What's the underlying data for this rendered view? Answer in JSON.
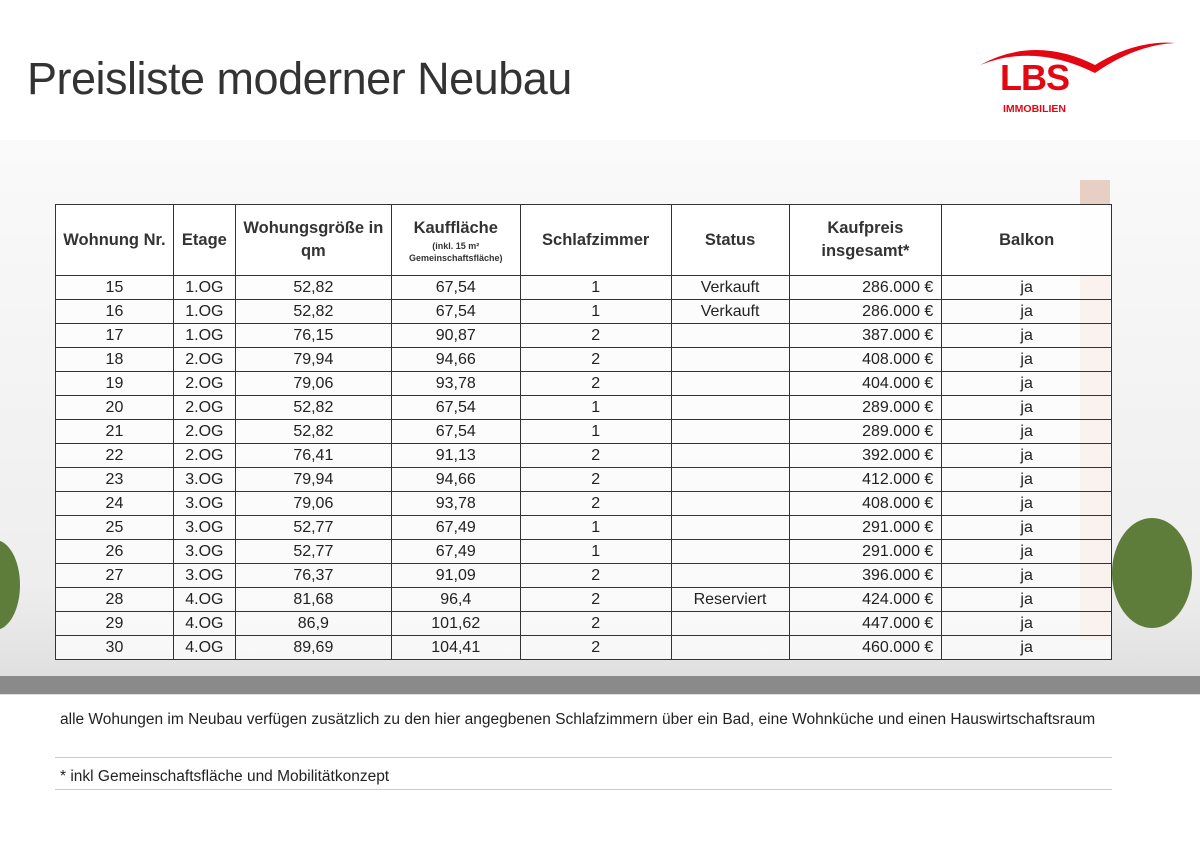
{
  "title": "Preisliste moderner Neubau",
  "logo": {
    "text": "LBS",
    "subtext": "IMMOBILIEN",
    "color": "#e30613"
  },
  "table": {
    "headers": [
      {
        "main": "Wohnung Nr."
      },
      {
        "main": "Etage"
      },
      {
        "main": "Wohungsgröße in qm"
      },
      {
        "main": "Kauffläche",
        "sub": "(inkl. 15 m² Gemeinschaftsfläche)"
      },
      {
        "main": "Schlafzimmer"
      },
      {
        "main": "Status"
      },
      {
        "main": "Kaufpreis insgesamt*"
      },
      {
        "main": "Balkon"
      }
    ],
    "rows": [
      [
        "15",
        "1.OG",
        "52,82",
        "67,54",
        "1",
        "Verkauft",
        "286.000 €",
        "ja"
      ],
      [
        "16",
        "1.OG",
        "52,82",
        "67,54",
        "1",
        "Verkauft",
        "286.000 €",
        "ja"
      ],
      [
        "17",
        "1.OG",
        "76,15",
        "90,87",
        "2",
        "",
        "387.000 €",
        "ja"
      ],
      [
        "18",
        "2.OG",
        "79,94",
        "94,66",
        "2",
        "",
        "408.000 €",
        "ja"
      ],
      [
        "19",
        "2.OG",
        "79,06",
        "93,78",
        "2",
        "",
        "404.000 €",
        "ja"
      ],
      [
        "20",
        "2.OG",
        "52,82",
        "67,54",
        "1",
        "",
        "289.000 €",
        "ja"
      ],
      [
        "21",
        "2.OG",
        "52,82",
        "67,54",
        "1",
        "",
        "289.000 €",
        "ja"
      ],
      [
        "22",
        "2.OG",
        "76,41",
        "91,13",
        "2",
        "",
        "392.000 €",
        "ja"
      ],
      [
        "23",
        "3.OG",
        "79,94",
        "94,66",
        "2",
        "",
        "412.000 €",
        "ja"
      ],
      [
        "24",
        "3.OG",
        "79,06",
        "93,78",
        "2",
        "",
        "408.000 €",
        "ja"
      ],
      [
        "25",
        "3.OG",
        "52,77",
        "67,49",
        "1",
        "",
        "291.000 €",
        "ja"
      ],
      [
        "26",
        "3.OG",
        "52,77",
        "67,49",
        "1",
        "",
        "291.000 €",
        "ja"
      ],
      [
        "27",
        "3.OG",
        "76,37",
        "91,09",
        "2",
        "",
        "396.000 €",
        "ja"
      ],
      [
        "28",
        "4.OG",
        "81,68",
        "96,4",
        "2",
        "Reserviert",
        "424.000 €",
        "ja"
      ],
      [
        "29",
        "4.OG",
        "86,9",
        "101,62",
        "2",
        "",
        "447.000 €",
        "ja"
      ],
      [
        "30",
        "4.OG",
        "89,69",
        "104,41",
        "2",
        "",
        "460.000 €",
        "ja"
      ]
    ]
  },
  "notes": [
    "alle Wohungen im Neubau verfügen zusätzlich zu den hier angegbenen Schlafzimmern über ein Bad, eine Wohnküche und einen Hauswirtschaftsraum",
    "* inkl Gemeinschaftsfläche und Mobilitätkonzept"
  ]
}
